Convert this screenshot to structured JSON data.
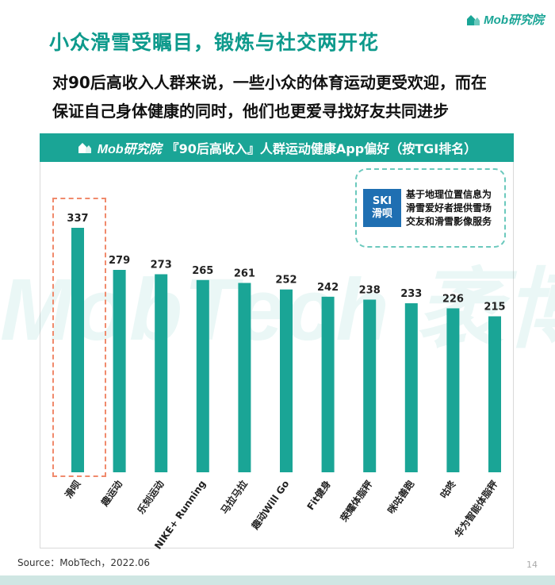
{
  "brand": {
    "logo_text": "Mob研究院"
  },
  "header": {
    "title": "小众滑雪受瞩目，锻炼与社交两开花",
    "subtitle_line1": "对90后高收入人群来说，一些小众的体育运动更受欢迎，而在",
    "subtitle_line2": "保证自己身体健康的同时，他们也更爱寻找好友共同进步"
  },
  "callout": {
    "logo_line1": "SKI",
    "logo_line2": "滑呗",
    "text_line1": "基于地理位置信息为",
    "text_line2": "滑雪爱好者提供雪场",
    "text_line3": "交友和滑雪影像服务"
  },
  "watermark": {
    "text": "MobTech 袤博"
  },
  "colors": {
    "accent": "#1aa596",
    "bar": "#1aa596",
    "highlight": "#f08a6c"
  },
  "chart_data": {
    "type": "bar",
    "title": "『90后高收入』人群运动健康App偏好（按TGI排名）",
    "categories": [
      "滑呗",
      "趣运动",
      "乐刻运动",
      "NIKE+ Running",
      "马拉马拉",
      "趣动Will Go",
      "Fit健身",
      "荣耀体脂秤",
      "咪咕善跑",
      "咕咚",
      "华为智能体脂秤"
    ],
    "values": [
      337,
      279,
      273,
      265,
      261,
      252,
      242,
      238,
      233,
      226,
      215
    ],
    "xlabel": "",
    "ylabel": "",
    "ylim": [
      0,
      350
    ],
    "grid": false,
    "highlighted_category": "滑呗"
  },
  "footer": {
    "source": "Source：MobTech，2022.06",
    "page": "14"
  }
}
